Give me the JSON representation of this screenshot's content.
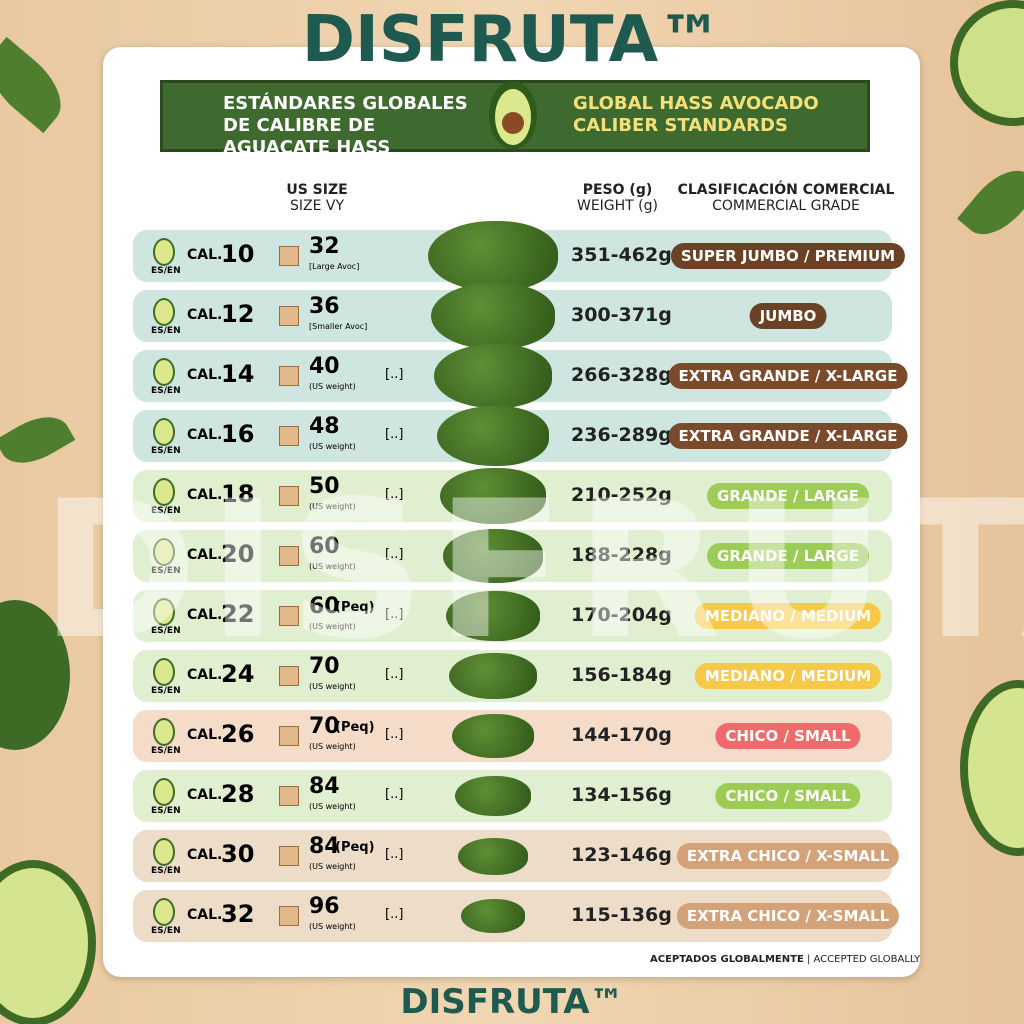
{
  "brand": "DISFRUTA™",
  "banner": {
    "left": "ESTÁNDARES GLOBALES DE CALIBRE DE AGUACATE HASS",
    "right": "GLOBAL HASS AVOCADO CALIBER STANDARDS"
  },
  "watermark": "DISFRUTA™",
  "table": {
    "headers": [
      {
        "line1": "US SIZE",
        "line2": "SIZE VY"
      },
      {
        "line1": "PESO (g)",
        "line2": "WEIGHT (g)"
      },
      {
        "line1": "CLASIFICACIÓN COMERCIAL",
        "line2": "COMMERCIAL GRADE"
      }
    ],
    "rows": [
      {
        "cal": "CAL.",
        "num": "10",
        "flag": "ES/EN",
        "size": "32",
        "note": "[Large Avoc]",
        "weight": "351-462g",
        "grade": "SUPER JUMBO / PREMIUM",
        "row_color": "#cfe6e0",
        "pill_color": "#6b4226"
      },
      {
        "cal": "CAL.",
        "num": "12",
        "flag": "ES/EN",
        "size": "36",
        "note": "[Smaller Avoc]",
        "weight": "300-371g",
        "grade": "JUMBO",
        "row_color": "#cfe6e0",
        "pill_color": "#6b4226"
      },
      {
        "cal": "CAL.",
        "num": "14",
        "flag": "ES/EN",
        "size": "40",
        "note": "(US weight)",
        "placeholder": "[..]",
        "weight": "266-328g",
        "grade": "EXTRA GRANDE / X-LARGE",
        "row_color": "#cfe6e0",
        "pill_color": "#7a4a2a"
      },
      {
        "cal": "CAL.",
        "num": "16",
        "flag": "ES/EN",
        "size": "48",
        "note": "(US weight)",
        "placeholder": "[..]",
        "weight": "236-289g",
        "grade": "EXTRA GRANDE / X-LARGE",
        "row_color": "#cfe6e0",
        "pill_color": "#7a4a2a"
      },
      {
        "cal": "CAL.",
        "num": "18",
        "flag": "ES/EN",
        "size": "50",
        "note": "(US weight)",
        "placeholder": "[..]",
        "weight": "210-252g",
        "grade": "GRANDE / LARGE",
        "row_color": "#e0efcf",
        "pill_color": "#9ccc55"
      },
      {
        "cal": "CAL.",
        "num": "20",
        "flag": "ES/EN",
        "size": "60",
        "note": "(US weight)",
        "placeholder": "[..]",
        "weight": "188-228g",
        "grade": "GRANDE / LARGE",
        "row_color": "#e0efcf",
        "pill_color": "#9ccc55"
      },
      {
        "cal": "CAL.",
        "num": "22",
        "flag": "ES/EN",
        "size": "60",
        "qualifier": "(Peq)",
        "note": "(US weight)",
        "placeholder": "[..]",
        "weight": "170-204g",
        "grade": "MEDIANO / MEDIUM",
        "row_color": "#e0efcf",
        "pill_color": "#f7c948"
      },
      {
        "cal": "CAL.",
        "num": "24",
        "flag": "ES/EN",
        "size": "70",
        "note": "(US weight)",
        "placeholder": "[..]",
        "weight": "156-184g",
        "grade": "MEDIANO / MEDIUM",
        "row_color": "#e0efcf",
        "pill_color": "#f7c948"
      },
      {
        "cal": "CAL.",
        "num": "26",
        "flag": "ES/EN",
        "size": "70",
        "qualifier": "(Peq)",
        "note": "(US weight)",
        "placeholder": "[..]",
        "weight": "144-170g",
        "grade": "CHICO / SMALL",
        "row_color": "#f5dcc8",
        "pill_color": "#ef6b6b"
      },
      {
        "cal": "CAL.",
        "num": "28",
        "flag": "ES/EN",
        "size": "84",
        "note": "(US weight)",
        "placeholder": "[..]",
        "weight": "134-156g",
        "grade": "CHICO / SMALL",
        "row_color": "#e0efcf",
        "pill_color": "#9ccc55"
      },
      {
        "cal": "CAL.",
        "num": "30",
        "flag": "ES/EN",
        "size": "84",
        "qualifier": "(Peq)",
        "note": "(US weight)",
        "placeholder": "[..]",
        "weight": "123-146g",
        "grade": "EXTRA CHICO / X-SMALL",
        "row_color": "#ecdcc8",
        "pill_color": "#d4a278"
      },
      {
        "cal": "CAL.",
        "num": "32",
        "flag": "ES/EN",
        "size": "96",
        "note": "(US weight)",
        "placeholder": "[..]",
        "weight": "115-136g",
        "grade": "EXTRA CHICO / X-SMALL",
        "row_color": "#ecdcc8",
        "pill_color": "#d4a278"
      }
    ]
  },
  "footer": {
    "left": "ACEPTADOS GLOBALMENTE",
    "right": "| ACCEPTED GLOBALLY"
  },
  "bottom_brand": "DISFRUTA™"
}
